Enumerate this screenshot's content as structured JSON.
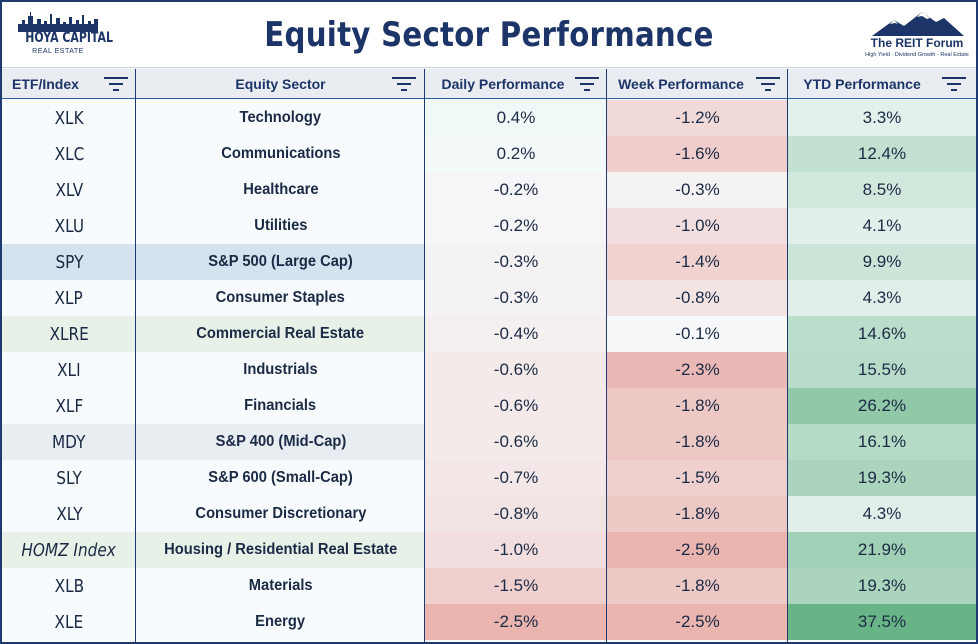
{
  "header": {
    "title": "Equity Sector Performance",
    "logo_left": {
      "brand": "HOYA CAPITAL",
      "sub": "REAL ESTATE"
    },
    "logo_right": {
      "brand": "The REIT Forum",
      "tagline": "High Yield · Dividend Growth · Real Estate"
    }
  },
  "columns": {
    "etf": "ETF/Index",
    "sector": "Equity Sector",
    "daily": "Daily Performance",
    "week": "Week Performance",
    "ytd": "YTD Performance"
  },
  "rows": [
    {
      "etf": "XLK",
      "sector": "Technology",
      "daily": "0.4%",
      "week": "-1.2%",
      "ytd": "3.3%"
    },
    {
      "etf": "XLC",
      "sector": "Communications",
      "daily": "0.2%",
      "week": "-1.6%",
      "ytd": "12.4%"
    },
    {
      "etf": "XLV",
      "sector": "Healthcare",
      "daily": "-0.2%",
      "week": "-0.3%",
      "ytd": "8.5%"
    },
    {
      "etf": "XLU",
      "sector": "Utilities",
      "daily": "-0.2%",
      "week": "-1.0%",
      "ytd": "4.1%"
    },
    {
      "etf": "SPY",
      "sector": "S&P 500 (Large Cap)",
      "daily": "-0.3%",
      "week": "-1.4%",
      "ytd": "9.9%"
    },
    {
      "etf": "XLP",
      "sector": "Consumer Staples",
      "daily": "-0.3%",
      "week": "-0.8%",
      "ytd": "4.3%"
    },
    {
      "etf": "XLRE",
      "sector": "Commercial Real Estate",
      "daily": "-0.4%",
      "week": "-0.1%",
      "ytd": "14.6%"
    },
    {
      "etf": "XLI",
      "sector": "Industrials",
      "daily": "-0.6%",
      "week": "-2.3%",
      "ytd": "15.5%"
    },
    {
      "etf": "XLF",
      "sector": "Financials",
      "daily": "-0.6%",
      "week": "-1.8%",
      "ytd": "26.2%"
    },
    {
      "etf": "MDY",
      "sector": "S&P 400 (Mid-Cap)",
      "daily": "-0.6%",
      "week": "-1.8%",
      "ytd": "16.1%"
    },
    {
      "etf": "SLY",
      "sector": "S&P 600 (Small-Cap)",
      "daily": "-0.7%",
      "week": "-1.5%",
      "ytd": "19.3%"
    },
    {
      "etf": "XLY",
      "sector": "Consumer Discretionary",
      "daily": "-0.8%",
      "week": "-1.8%",
      "ytd": "4.3%"
    },
    {
      "etf": "HOMZ Index",
      "sector": "Housing / Residential Real Estate",
      "daily": "-1.0%",
      "week": "-2.5%",
      "ytd": "21.9%"
    },
    {
      "etf": "XLB",
      "sector": "Materials",
      "daily": "-1.5%",
      "week": "-1.8%",
      "ytd": "19.3%"
    },
    {
      "etf": "XLE",
      "sector": "Energy",
      "daily": "-2.5%",
      "week": "-2.5%",
      "ytd": "37.5%"
    }
  ],
  "colors": {
    "title": "#1c3467",
    "border": "#1f3a6e",
    "negative": "#e8a7a1",
    "positive": "#5faf7e",
    "highlight_spy": "#d5e2f0",
    "highlight_xlre": "#e8f1e8",
    "highlight_mdy": "#e8edf2",
    "highlight_homz": "#e8f1e8"
  }
}
